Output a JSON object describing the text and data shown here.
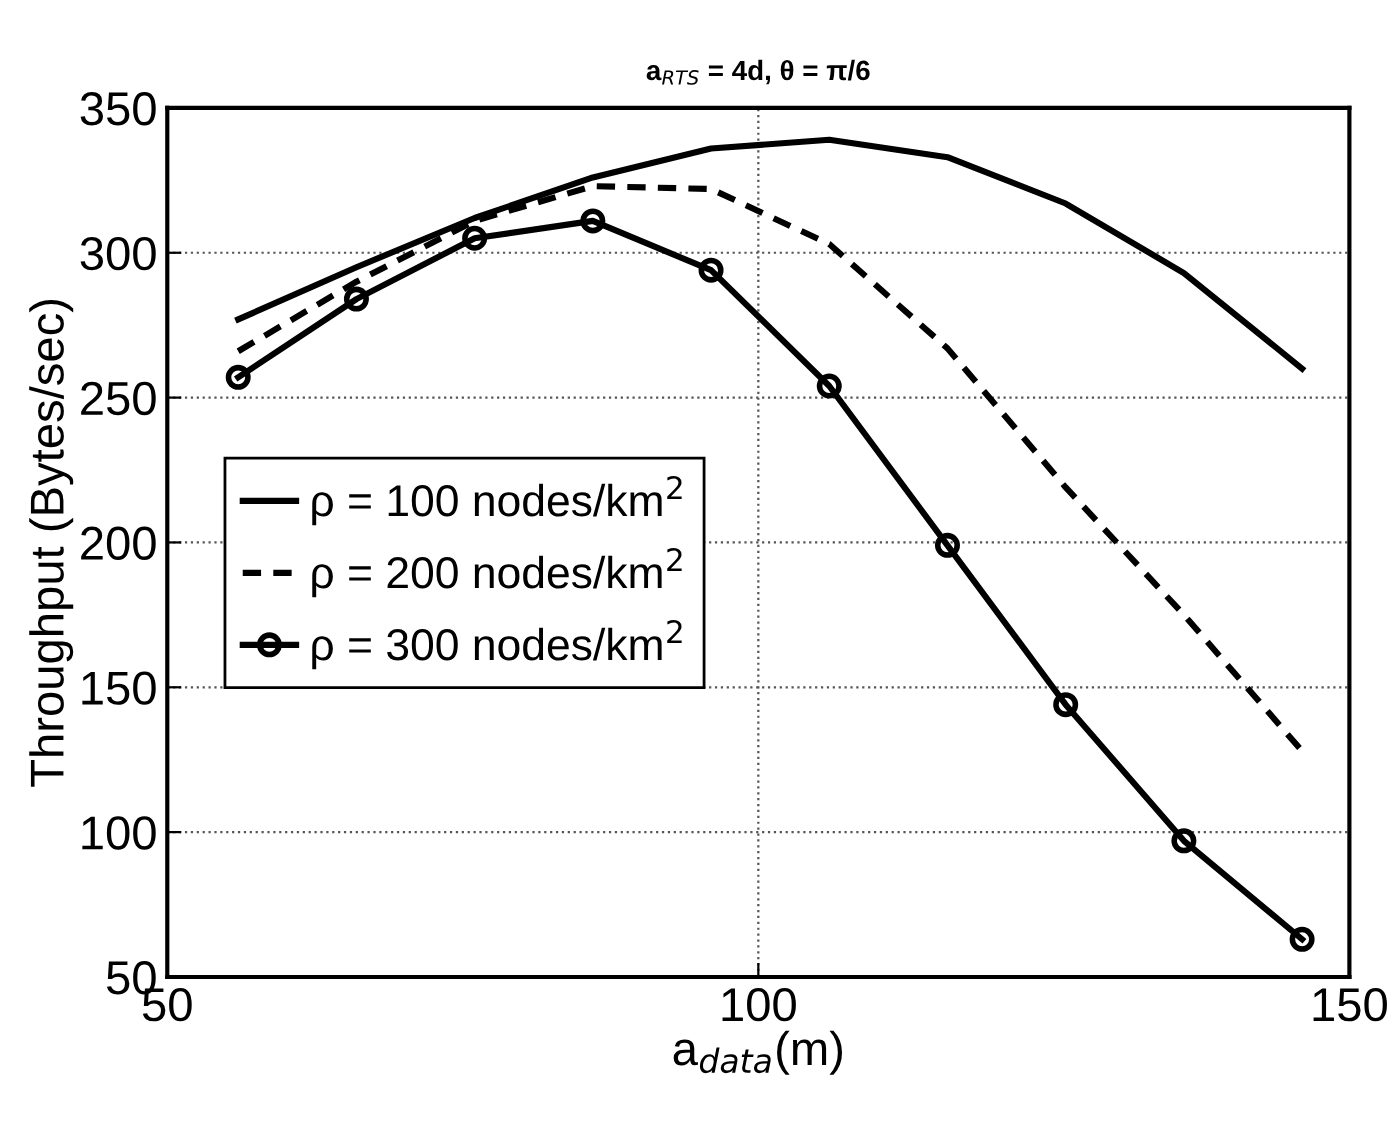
{
  "chart_data": {
    "type": "line",
    "title": "a$_{RTS}$ = 4d, θ = π/6",
    "xlabel": "a$_{data}$(m)",
    "ylabel": "Throughput (Bytes/sec)",
    "x": [
      56,
      66,
      76,
      86,
      96,
      106,
      116,
      126,
      136,
      146
    ],
    "series": [
      {
        "name": "ρ = 100 nodes/km$^{2}$",
        "color": "#000000",
        "line_style": "solid",
        "marker": "none",
        "values": [
          277,
          295,
          312,
          326,
          336,
          339,
          333,
          317,
          293,
          260
        ]
      },
      {
        "name": "ρ = 200 nodes/km$^{2}$",
        "color": "#000000",
        "line_style": "dashed",
        "marker": "none",
        "values": [
          266,
          290,
          311,
          323,
          322,
          303,
          267,
          219,
          175,
          128
        ]
      },
      {
        "name": "ρ = 300 nodes/km$^{2}$",
        "color": "#000000",
        "line_style": "solid",
        "marker": "circle",
        "values": [
          257,
          284,
          305,
          311,
          294,
          254,
          199,
          144,
          97,
          63
        ]
      }
    ],
    "xlim": [
      50,
      150
    ],
    "ylim": [
      50,
      350
    ],
    "xticks": [
      50,
      100,
      150
    ],
    "yticks": [
      50,
      100,
      150,
      200,
      250,
      300,
      350
    ],
    "grid": true,
    "legend": "center left"
  }
}
